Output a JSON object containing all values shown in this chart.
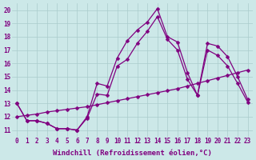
{
  "xlabel": "Windchill (Refroidissement éolien,°C)",
  "line_color": "#800080",
  "bg_color": "#cce8e8",
  "grid_color": "#aacccc",
  "xlim": [
    -0.5,
    23.5
  ],
  "ylim": [
    10.5,
    20.5
  ],
  "yticks": [
    11,
    12,
    13,
    14,
    15,
    16,
    17,
    18,
    19,
    20
  ],
  "xticks": [
    0,
    1,
    2,
    3,
    4,
    5,
    6,
    7,
    8,
    9,
    10,
    11,
    12,
    13,
    14,
    15,
    16,
    17,
    18,
    19,
    20,
    21,
    22,
    23
  ],
  "series1_x": [
    0,
    1,
    2,
    3,
    4,
    5,
    6,
    7,
    8,
    9,
    10,
    11,
    12,
    13,
    14,
    15,
    16,
    17,
    18,
    19,
    20,
    21,
    22,
    23
  ],
  "series1_y": [
    13.0,
    11.7,
    11.7,
    11.5,
    11.1,
    11.1,
    11.0,
    12.0,
    14.5,
    14.3,
    16.4,
    17.7,
    18.5,
    19.1,
    20.1,
    18.0,
    17.6,
    15.3,
    13.6,
    17.5,
    17.3,
    16.5,
    15.0,
    13.3
  ],
  "series2_x": [
    0,
    1,
    2,
    3,
    4,
    5,
    6,
    7,
    8,
    9,
    10,
    11,
    12,
    13,
    14,
    15,
    16,
    17,
    18,
    19,
    20,
    21,
    22,
    23
  ],
  "series2_y": [
    13.0,
    11.7,
    11.7,
    11.5,
    11.1,
    11.1,
    11.0,
    11.9,
    13.7,
    13.6,
    15.8,
    16.3,
    17.5,
    18.4,
    19.5,
    17.8,
    17.0,
    14.8,
    13.6,
    17.0,
    16.6,
    15.8,
    14.5,
    13.1
  ],
  "series3_x": [
    0,
    1,
    2,
    3,
    4,
    5,
    6,
    7,
    8,
    9,
    10,
    11,
    12,
    13,
    14,
    15,
    16,
    17,
    18,
    19,
    20,
    21,
    22,
    23
  ],
  "series3_y": [
    12.0,
    12.1,
    12.2,
    12.35,
    12.45,
    12.55,
    12.65,
    12.75,
    12.9,
    13.05,
    13.2,
    13.35,
    13.5,
    13.65,
    13.8,
    13.95,
    14.1,
    14.3,
    14.5,
    14.7,
    14.9,
    15.1,
    15.3,
    15.5
  ],
  "marker_size": 2.5,
  "line_width": 0.9,
  "font_size": 6.5,
  "tick_label_size": 5.5
}
